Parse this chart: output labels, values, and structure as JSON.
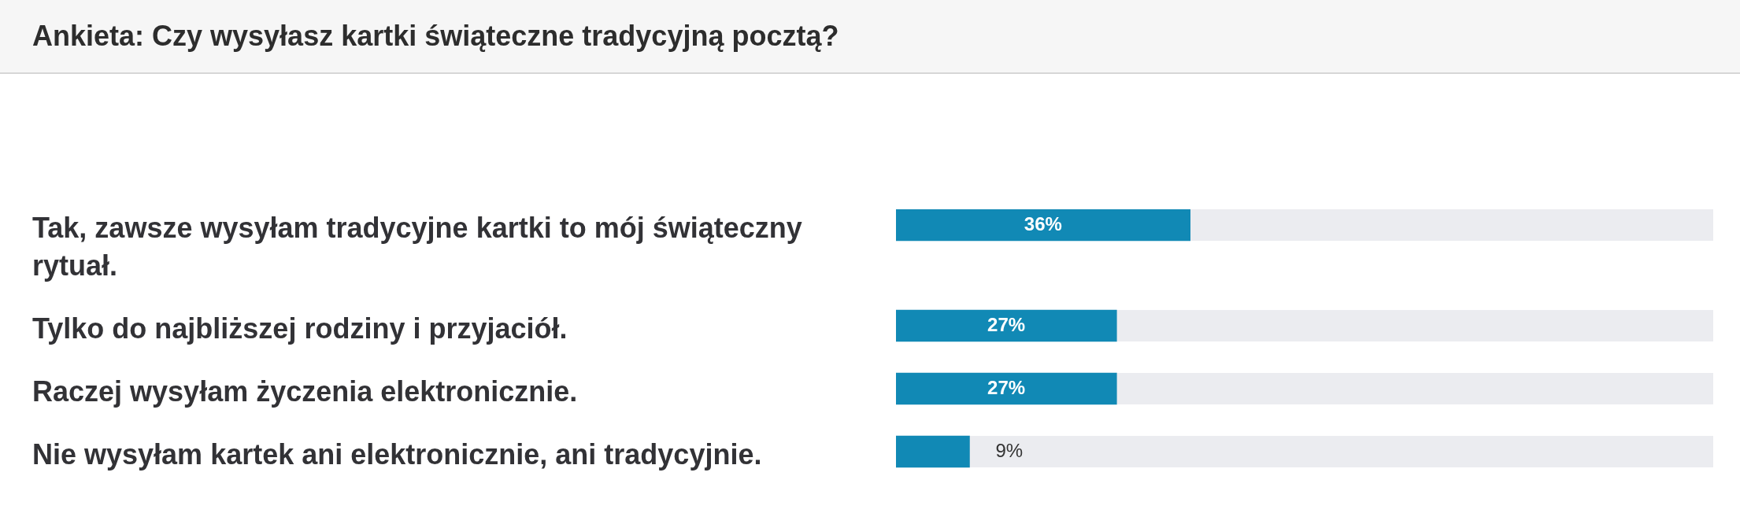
{
  "chart_data": {
    "type": "bar",
    "orientation": "horizontal",
    "title": "Ankieta: Czy wysyłasz kartki świąteczne tradycyjną pocztą?",
    "categories": [
      "Tak, zawsze wysyłam tradycyjne kartki to mój świąteczny rytuał.",
      "Tylko do najbliższej rodziny i przyjaciół.",
      "Raczej wysyłam życzenia elektronicznie.",
      "Nie wysyłam kartek ani elektronicznie, ani tradycyjnie."
    ],
    "values": [
      36,
      27,
      27,
      9
    ],
    "value_labels": [
      "36%",
      "27%",
      "27%",
      "9%"
    ],
    "color": "#1189b5",
    "xlim": [
      0,
      100
    ],
    "tick_labels": "y"
  }
}
